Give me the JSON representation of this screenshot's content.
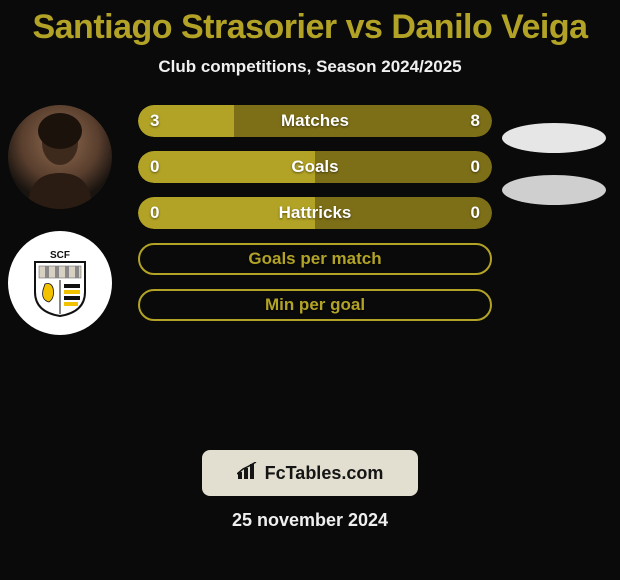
{
  "colors": {
    "title": "#b2a326",
    "accent": "#b2a326",
    "accent_dark": "#7d6f17",
    "neutral_light": "#e6e6e6",
    "neutral_mid": "#cfcfcf",
    "badge_bg": "#e2dfd0",
    "badge_text": "#151515",
    "background": "#0a0a0a"
  },
  "header": {
    "title": "Santiago Strasorier vs Danilo Veiga",
    "subtitle": "Club competitions, Season 2024/2025"
  },
  "left": {
    "player_alt": "Player headshot",
    "club_letters": "SCF",
    "club_alt": "SC Farense crest"
  },
  "right_ellipses": [
    "#e6e6e6",
    "#cfcfcf"
  ],
  "stats": [
    {
      "label": "Matches",
      "left_value": "3",
      "right_value": "8",
      "type": "split",
      "left_pct": 27,
      "left_color": "#b2a326",
      "right_color": "#7d6f17"
    },
    {
      "label": "Goals",
      "left_value": "0",
      "right_value": "0",
      "type": "split",
      "left_pct": 50,
      "left_color": "#b2a326",
      "right_color": "#7d6f17"
    },
    {
      "label": "Hattricks",
      "left_value": "0",
      "right_value": "0",
      "type": "split",
      "left_pct": 50,
      "left_color": "#b2a326",
      "right_color": "#7d6f17"
    },
    {
      "label": "Goals per match",
      "type": "bordered"
    },
    {
      "label": "Min per goal",
      "type": "bordered"
    }
  ],
  "footer": {
    "brand_icon": "chart-bars-icon",
    "brand_text": "FcTables.com",
    "date": "25 november 2024"
  }
}
